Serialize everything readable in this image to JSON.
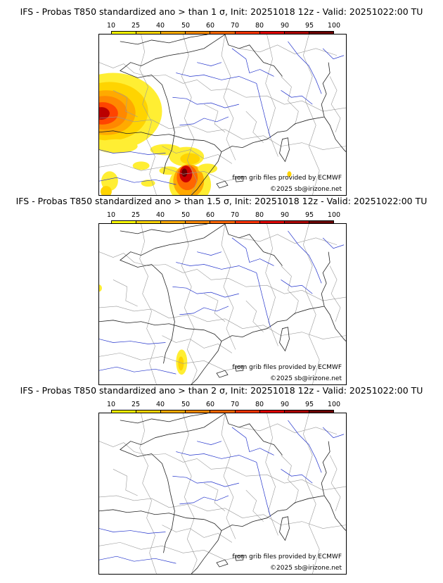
{
  "colorbar": {
    "ticks": [
      "10",
      "25",
      "40",
      "50",
      "60",
      "70",
      "80",
      "90",
      "95",
      "100"
    ],
    "colors": [
      "#ffff00",
      "#ffd400",
      "#ffaa00",
      "#ff8800",
      "#ff6600",
      "#ff3300",
      "#dd0000",
      "#aa0000",
      "#6b0000"
    ]
  },
  "credits": {
    "source": "from grib files provided by ECMWF",
    "copyright": "©2025 sb@irizone.net"
  },
  "panels": [
    {
      "title": "IFS - Probas T850  standardized ano > than 1 σ, Init: 20251018 12z - Valid: 20251022:00 TU"
    },
    {
      "title": "IFS - Probas T850  standardized ano > than 1.5 σ, Init: 20251018 12z - Valid: 20251022:00 TU"
    },
    {
      "title": "IFS - Probas T850  standardized ano > than 2 σ, Init: 20251018 12z - Valid: 20251022:00 TU"
    }
  ]
}
